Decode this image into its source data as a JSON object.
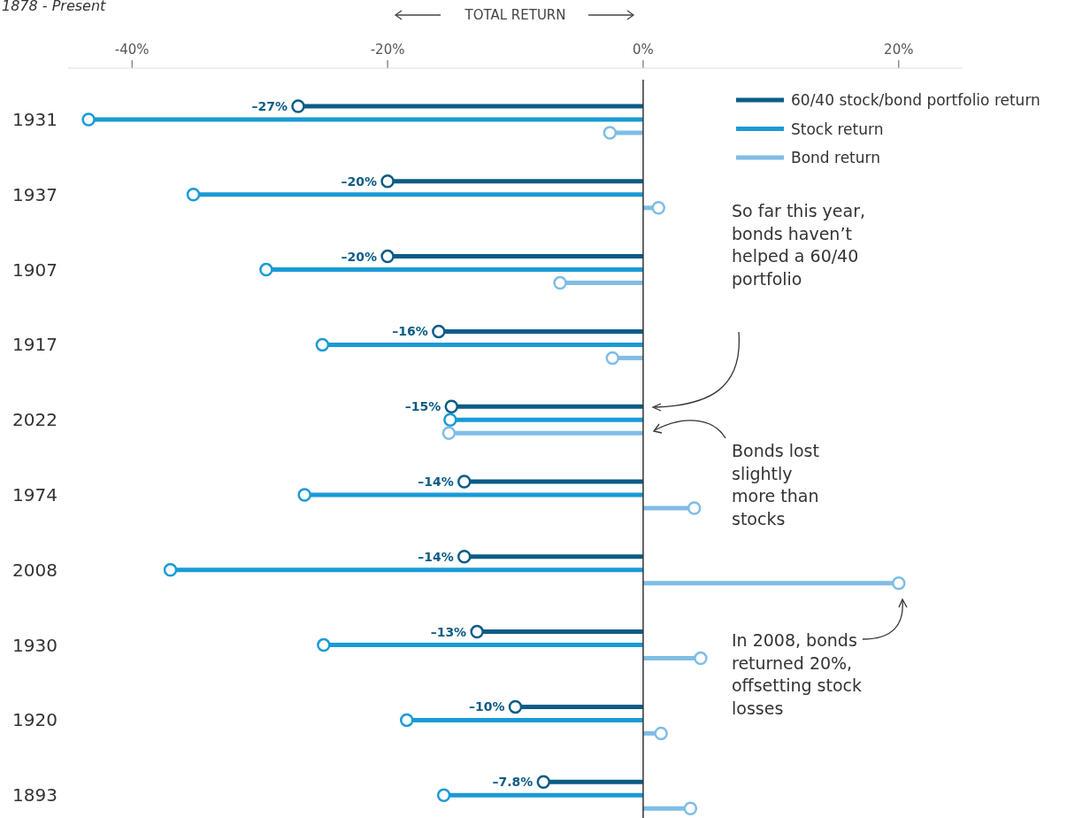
{
  "chart_data": {
    "type": "lollipop",
    "orientation": "horizontal",
    "subtitle": "1878 - Present",
    "xlabel": "TOTAL RETURN",
    "categories": [
      "1931",
      "1937",
      "1907",
      "1917",
      "2022",
      "1974",
      "2008",
      "1930",
      "1920",
      "1893"
    ],
    "series": [
      {
        "name": "60/40 stock/bond portfolio return",
        "color": "#0b5c86",
        "values": [
          -27,
          -20,
          -20,
          -16,
          -15,
          -14,
          -14,
          -13,
          -10,
          -7.8
        ],
        "value_labels": [
          "–27%",
          "–20%",
          "–20%",
          "–16%",
          "–15%",
          "–14%",
          "–14%",
          "–13%",
          "–10%",
          "–7.8%"
        ]
      },
      {
        "name": "Stock return",
        "color": "#1a9ad6",
        "values": [
          -43.4,
          -35.2,
          -29.5,
          -25.1,
          -15.1,
          -26.5,
          -37,
          -25,
          -18.5,
          -15.6
        ]
      },
      {
        "name": "Bond return",
        "color": "#7fbde6",
        "values": [
          -2.6,
          1.2,
          -6.5,
          -2.4,
          -15.2,
          4,
          20,
          4.5,
          1.4,
          3.7
        ]
      }
    ],
    "ref_lines": [
      {
        "axis": "x",
        "value": 0
      }
    ],
    "xlim": [
      -45,
      25
    ],
    "xticks": [
      {
        "value": -40,
        "label": "-40%"
      },
      {
        "value": -20,
        "label": "-20%"
      },
      {
        "value": 0,
        "label": "0%"
      },
      {
        "value": 20,
        "label": "20%"
      }
    ],
    "marker": "circle",
    "legend": "top right",
    "grid": false,
    "annotations": [
      "So far this year, bonds haven’t helped a 60/40 portfolio",
      "Bonds lost slightly more than stocks",
      "In 2008, bonds returned 20%, offsetting stock losses"
    ]
  }
}
